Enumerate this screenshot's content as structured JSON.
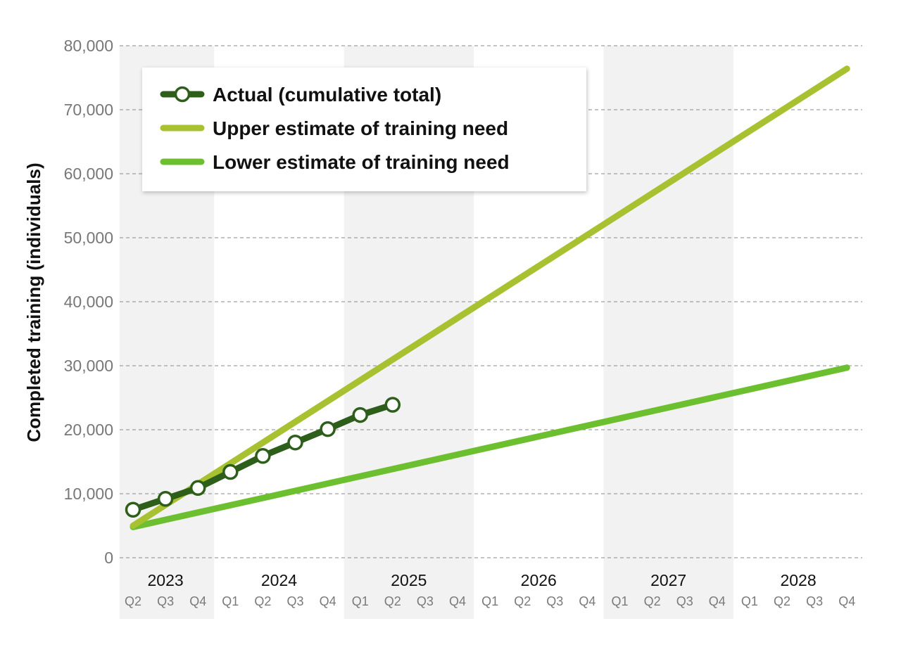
{
  "chart_data": {
    "type": "line",
    "ylabel": "Completed training (individuals)",
    "xlabel": "",
    "ylim": [
      0,
      80000
    ],
    "yticks": [
      0,
      10000,
      20000,
      30000,
      40000,
      50000,
      60000,
      70000,
      80000
    ],
    "y_tick_labels": [
      "0",
      "10,000",
      "20,000",
      "30,000",
      "40,000",
      "50,000",
      "60,000",
      "70,000",
      "80,000"
    ],
    "grid": "horizontal dashed",
    "legend_position": "top-left",
    "year_bands": [
      {
        "year": "2023",
        "quarters": [
          "Q2",
          "Q3",
          "Q4"
        ],
        "shaded": true
      },
      {
        "year": "2024",
        "quarters": [
          "Q1",
          "Q2",
          "Q3",
          "Q4"
        ],
        "shaded": false
      },
      {
        "year": "2025",
        "quarters": [
          "Q1",
          "Q2",
          "Q3",
          "Q4"
        ],
        "shaded": true
      },
      {
        "year": "2026",
        "quarters": [
          "Q1",
          "Q2",
          "Q3",
          "Q4"
        ],
        "shaded": false
      },
      {
        "year": "2027",
        "quarters": [
          "Q1",
          "Q2",
          "Q3",
          "Q4"
        ],
        "shaded": true
      },
      {
        "year": "2028",
        "quarters": [
          "Q1",
          "Q2",
          "Q3",
          "Q4"
        ],
        "shaded": false
      }
    ],
    "series": [
      {
        "name": "Actual (cumulative total)",
        "color": "#2d5f1b",
        "marker": "circle",
        "points": [
          {
            "x": "2023 Q2",
            "y": 7500
          },
          {
            "x": "2023 Q3",
            "y": 9200
          },
          {
            "x": "2023 Q4",
            "y": 10900
          },
          {
            "x": "2024 Q1",
            "y": 13400
          },
          {
            "x": "2024 Q2",
            "y": 15900
          },
          {
            "x": "2024 Q3",
            "y": 18000
          },
          {
            "x": "2024 Q4",
            "y": 20100
          },
          {
            "x": "2025 Q1",
            "y": 22300
          },
          {
            "x": "2025 Q2",
            "y": 23900
          }
        ]
      },
      {
        "name": "Upper estimate of training need",
        "color": "#a8c130",
        "marker": "none",
        "points": [
          {
            "x": "2023 Q2",
            "y": 5000
          },
          {
            "x": "2028 Q4",
            "y": 76400
          }
        ]
      },
      {
        "name": "Lower estimate of training need",
        "color": "#6cbf2f",
        "marker": "none",
        "points": [
          {
            "x": "2023 Q2",
            "y": 4800
          },
          {
            "x": "2028 Q4",
            "y": 29700
          }
        ]
      }
    ]
  }
}
